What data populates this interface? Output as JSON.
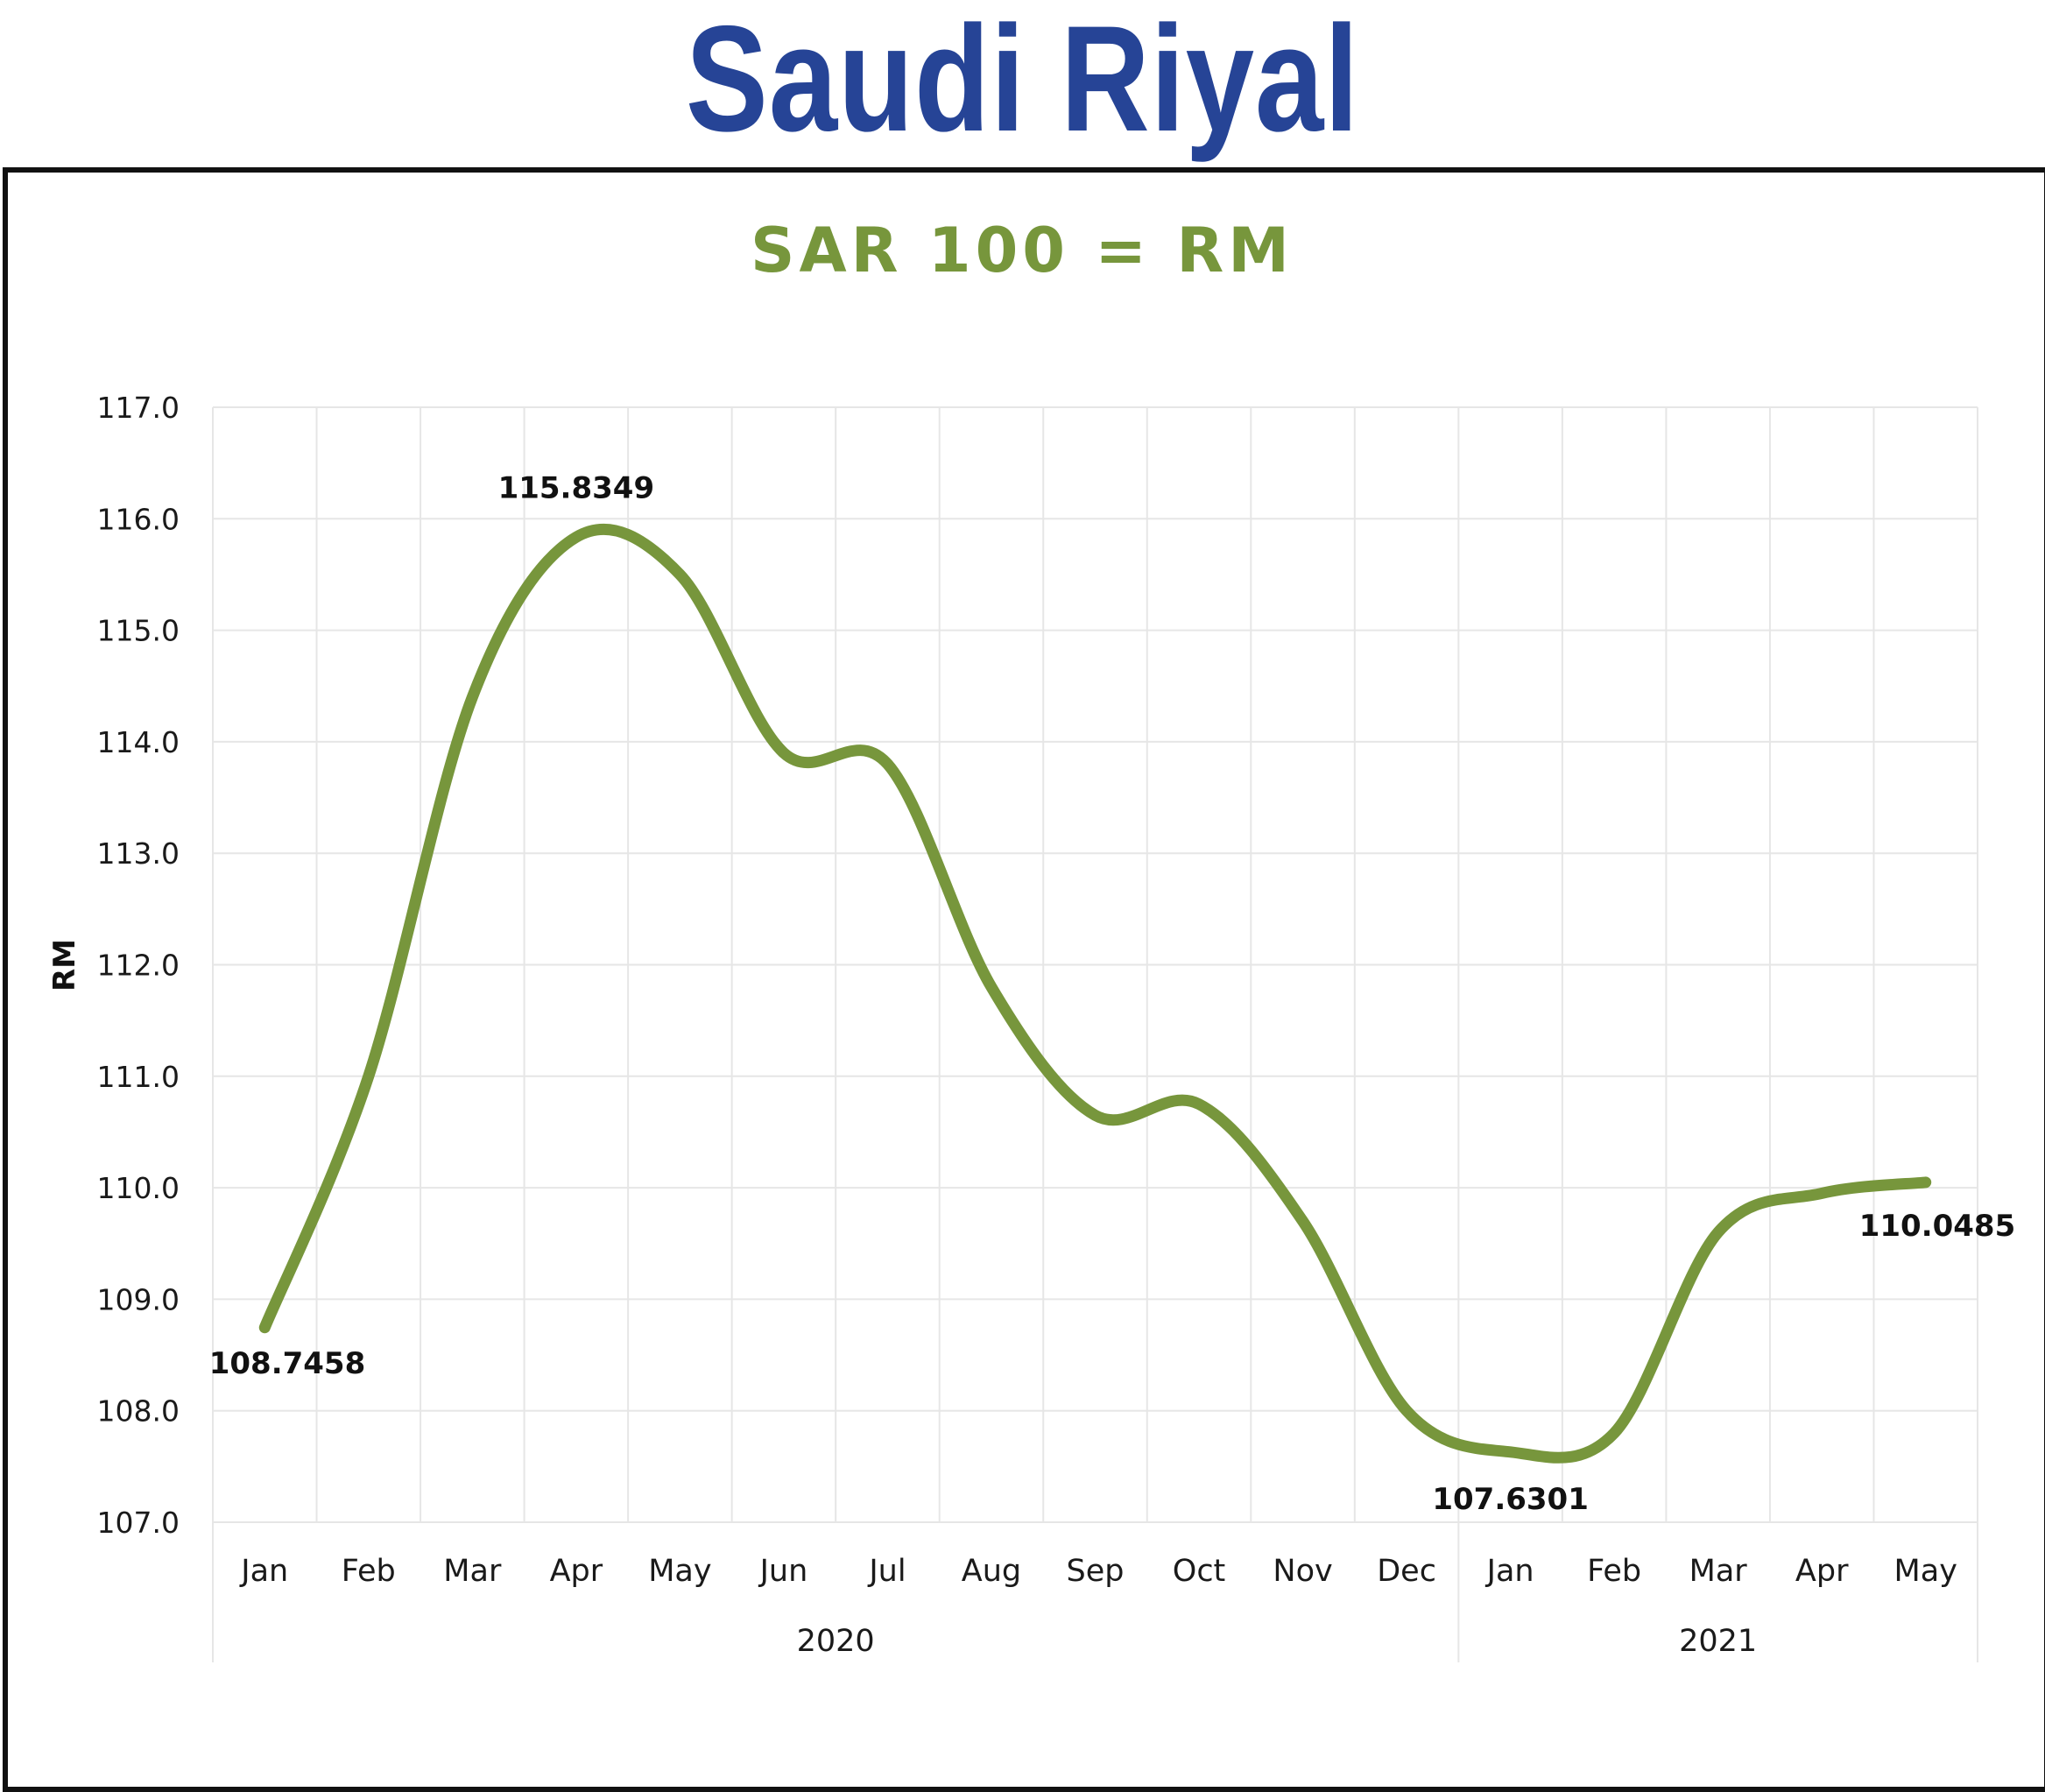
{
  "heading": "Saudi Riyal",
  "colors": {
    "heading": "#264496",
    "line": "#77963C",
    "grid": "#E6E6E6"
  },
  "chart_data": {
    "type": "line",
    "title": "SAR 100 = RM",
    "ylabel": "RM",
    "xlabel": "",
    "ylim": [
      107.0,
      117.0
    ],
    "yticks": [
      "107.0",
      "108.0",
      "109.0",
      "110.0",
      "111.0",
      "112.0",
      "113.0",
      "114.0",
      "115.0",
      "116.0",
      "117.0"
    ],
    "grid": true,
    "legend": "none",
    "categories": [
      "Jan",
      "Feb",
      "Mar",
      "Apr",
      "May",
      "Jun",
      "Jul",
      "Aug",
      "Sep",
      "Oct",
      "Nov",
      "Dec",
      "Jan",
      "Feb",
      "Mar",
      "Apr",
      "May"
    ],
    "years": [
      {
        "label": "2020",
        "start": 0,
        "end": 11
      },
      {
        "label": "2021",
        "start": 12,
        "end": 16
      }
    ],
    "series": [
      {
        "values": [
          108.7458,
          111.0,
          114.4,
          115.8349,
          115.5,
          113.9,
          113.8,
          111.8,
          110.65,
          110.75,
          109.7,
          108.0,
          107.6301,
          107.8,
          109.6,
          109.95,
          110.0485
        ]
      }
    ],
    "data_labels": [
      {
        "index": 0,
        "text": "108.7458",
        "position": "below"
      },
      {
        "index": 3,
        "text": "115.8349",
        "position": "above"
      },
      {
        "index": 12,
        "text": "107.6301",
        "position": "below"
      },
      {
        "index": 16,
        "text": "110.0485",
        "position": "below"
      }
    ]
  }
}
